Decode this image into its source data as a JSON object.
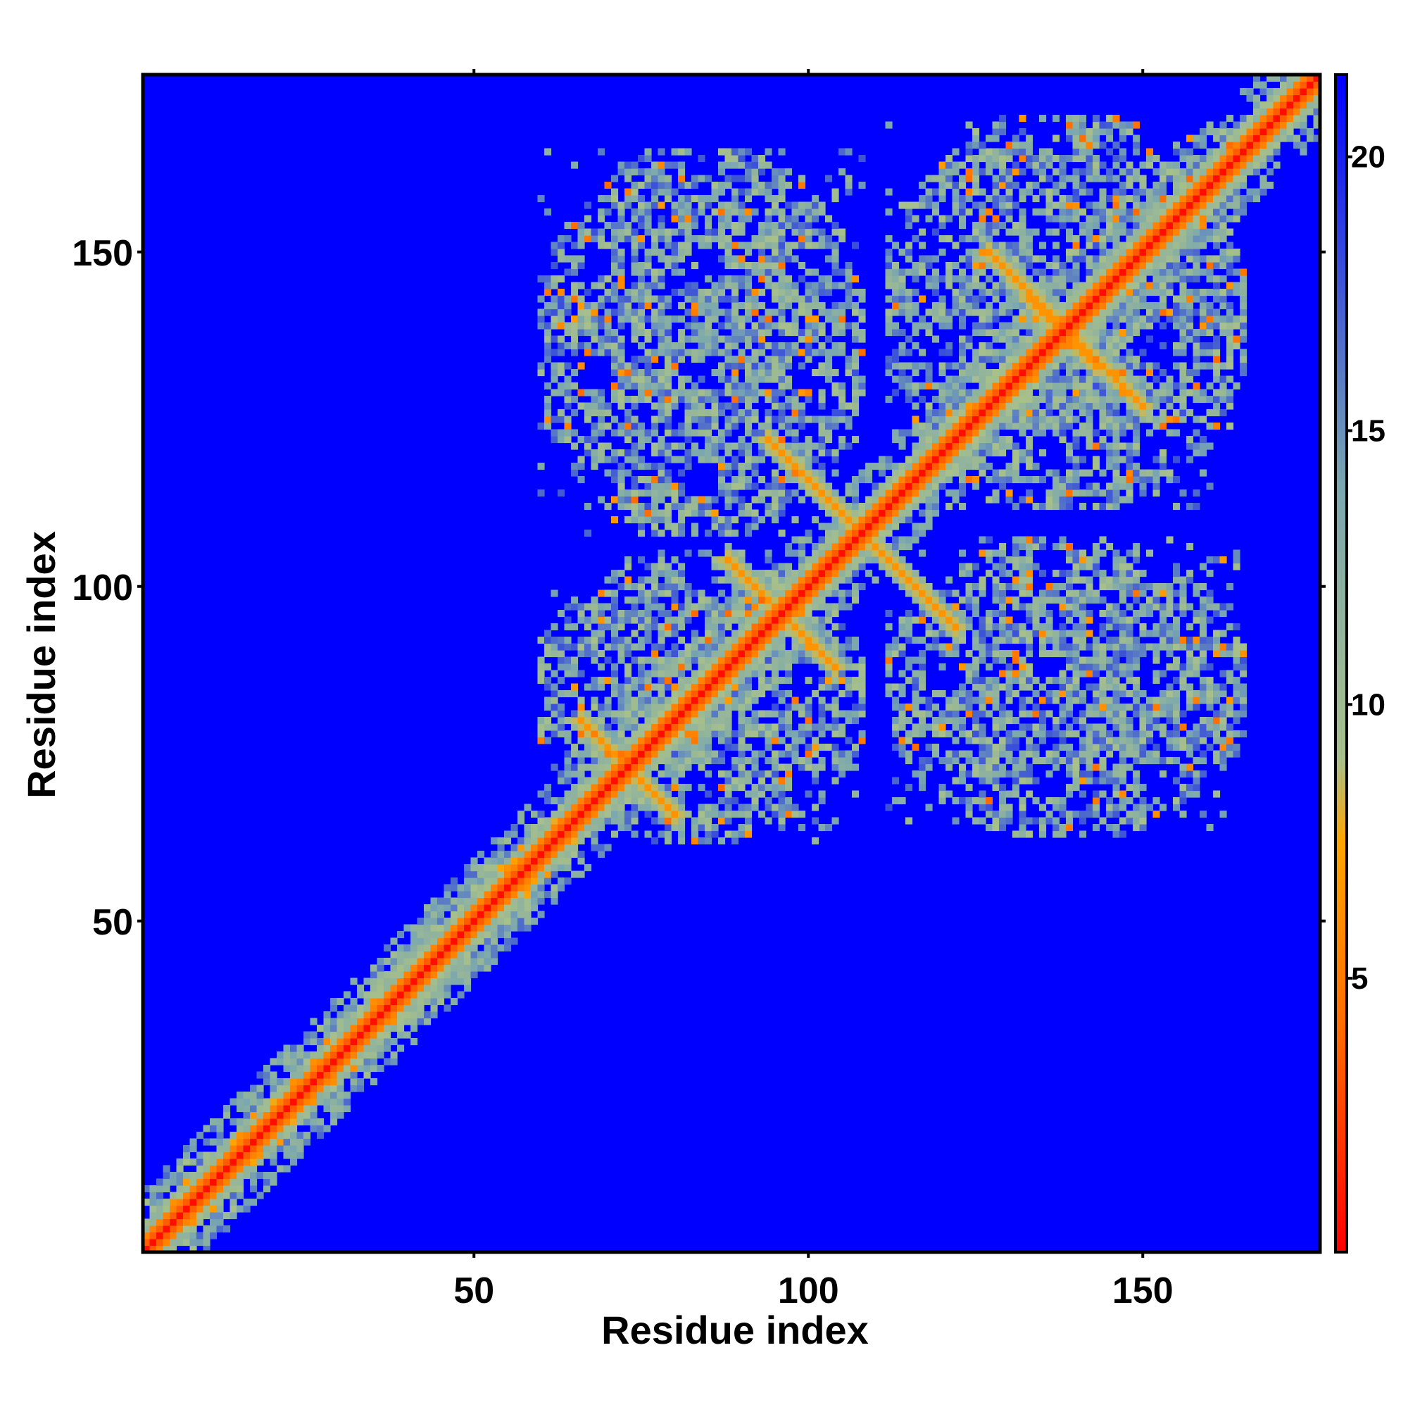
{
  "chart_data": {
    "type": "heatmap",
    "title": "",
    "xlabel": "Residue index",
    "ylabel": "Residue index",
    "xlim": [
      1,
      176
    ],
    "ylim": [
      1,
      176
    ],
    "x_ticks": [
      50,
      100,
      150
    ],
    "y_ticks": [
      50,
      100,
      150
    ],
    "colorbar": {
      "range": [
        0,
        21.5
      ],
      "ticks": [
        5,
        10,
        15,
        20
      ],
      "colors": [
        "#ff0000",
        "#ff6a00",
        "#ffa500",
        "#a8c08a",
        "#7aa7b0",
        "#0000ff"
      ],
      "stops": [
        0,
        4,
        7.5,
        9,
        14,
        21.5
      ]
    },
    "background_value": 21.5,
    "features": {
      "diagonal": {
        "start": 1,
        "end": 176,
        "value": 1
      },
      "helix_segment": {
        "start": 1,
        "end": 62,
        "band_width": 5
      },
      "antidiagonal_contacts": [
        {
          "from": [
            66,
            80
          ],
          "to": [
            80,
            66
          ]
        },
        {
          "from": [
            88,
            104
          ],
          "to": [
            104,
            88
          ]
        },
        {
          "from": [
            94,
            122
          ],
          "to": [
            122,
            94
          ]
        },
        {
          "from": [
            127,
            150
          ],
          "to": [
            150,
            127
          ]
        },
        {
          "from": [
            138,
            138
          ],
          "to": [
            150,
            127
          ]
        }
      ],
      "blocks": [
        {
          "x": [
            60,
            108
          ],
          "y": [
            62,
            105
          ]
        },
        {
          "x": [
            112,
            165
          ],
          "y": [
            63,
            107
          ]
        },
        {
          "x": [
            60,
            108
          ],
          "y": [
            108,
            165
          ]
        },
        {
          "x": [
            112,
            165
          ],
          "y": [
            112,
            170
          ]
        }
      ]
    }
  }
}
